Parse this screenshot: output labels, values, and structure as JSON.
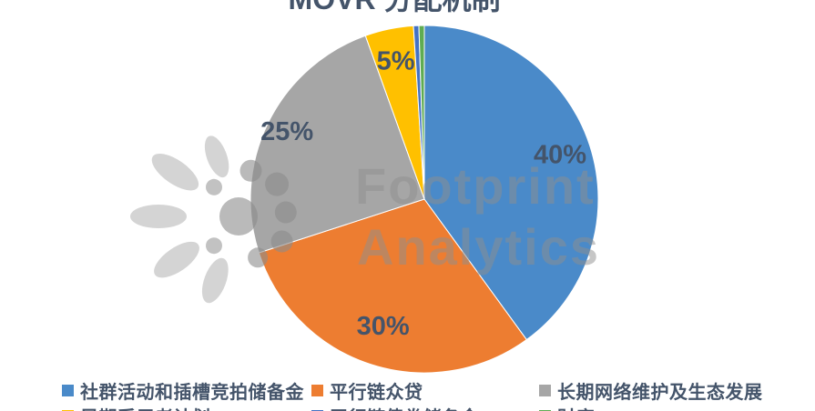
{
  "title": "MOVR 分配机制",
  "watermark": {
    "line1": "Footprint",
    "line2": "Analytics"
  },
  "colors": {
    "background": "#ffffff",
    "label_text": "#44546A",
    "legend_text": "#44546A",
    "watermark_gray": "#8f8f8f"
  },
  "chart_data": {
    "type": "pie",
    "title": "MOVR 分配机制",
    "legend_position": "bottom",
    "start_angle_deg": 0,
    "direction": "clockwise",
    "slices": [
      {
        "name": "社群活动和插槽竞拍储备金",
        "value": 40,
        "label": "40%",
        "color": "#4A8AC9"
      },
      {
        "name": "平行链众贷",
        "value": 30,
        "label": "30%",
        "color": "#ED7D31"
      },
      {
        "name": "长期网络维护及生态发展",
        "value": 24.5,
        "label": "25%",
        "color": "#A6A6A6"
      },
      {
        "name": "早期采用者计划",
        "value": 4.5,
        "label": "5%",
        "color": "#FFC000"
      },
      {
        "name": "平行链债券储备金",
        "value": 0.5,
        "label": "",
        "color": "#4472C4"
      },
      {
        "name": "财库",
        "value": 0.5,
        "label": "",
        "color": "#5FAC52"
      }
    ]
  }
}
